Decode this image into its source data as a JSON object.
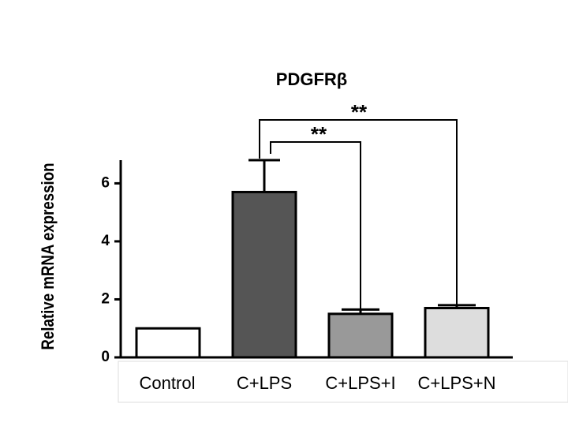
{
  "chart_data": {
    "type": "bar",
    "title": "PDGFRβ",
    "y_label": "Relative mRNA expression",
    "categories": [
      "Control",
      "C+LPS",
      "C+LPS+I",
      "C+LPS+N"
    ],
    "values": [
      1.0,
      5.7,
      1.5,
      1.7
    ],
    "errors": [
      0,
      1.1,
      0.15,
      0.1
    ],
    "colors": [
      "#ffffff",
      "#555555",
      "#999999",
      "#dddddd"
    ],
    "ylim": [
      0,
      6.8
    ],
    "yticks": [
      0,
      2,
      4,
      6
    ],
    "annotations": [
      "**",
      "**"
    ]
  }
}
